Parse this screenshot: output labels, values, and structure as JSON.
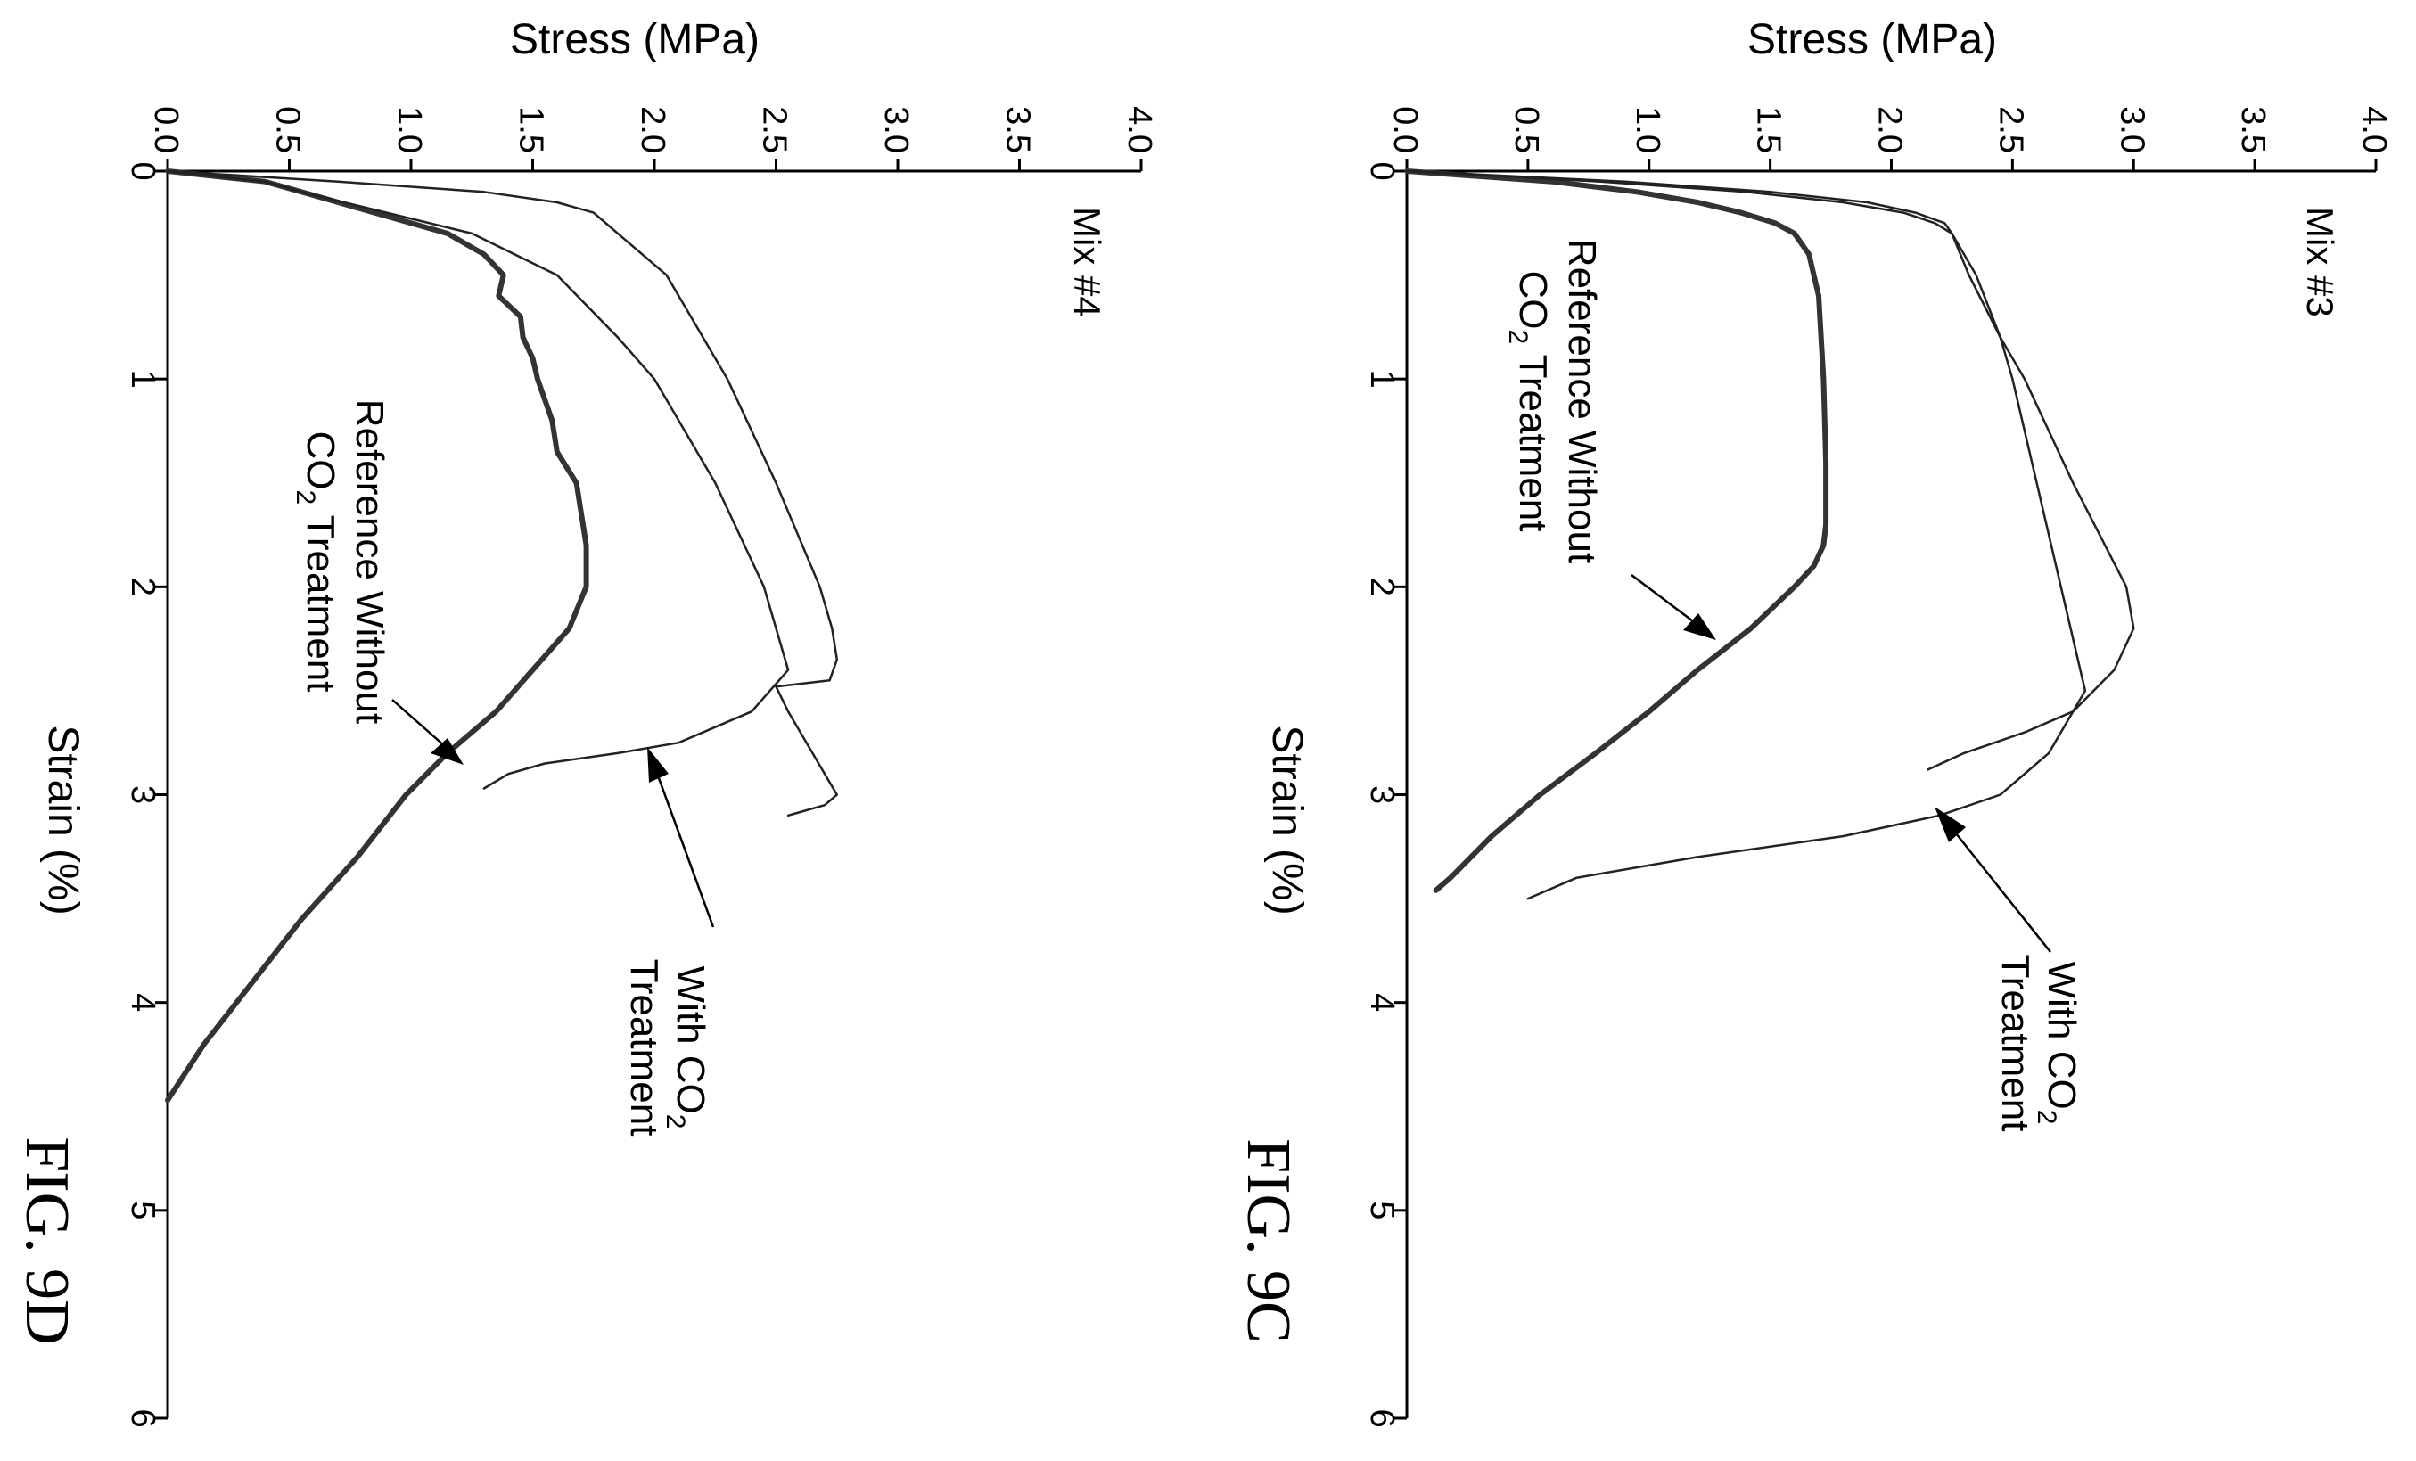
{
  "charts": [
    {
      "chart_data": {
        "type": "line",
        "figure_label": "FIG. 9C",
        "mix_label": "Mix #3",
        "xlabel": "Strain (%)",
        "ylabel": "Stress (MPa)",
        "xlim": [
          0,
          6
        ],
        "ylim": [
          0,
          4.0
        ],
        "xticks": [
          "0",
          "1",
          "2",
          "3",
          "4",
          "5",
          "6"
        ],
        "yticks": [
          "0.0",
          "0.5",
          "1.0",
          "1.5",
          "2.0",
          "2.5",
          "3.0",
          "3.5",
          "4.0"
        ],
        "series": [
          {
            "name": "Reference Without CO2 Treatment",
            "style": "thick",
            "x": [
              0,
              0.05,
              0.1,
              0.15,
              0.2,
              0.25,
              0.3,
              0.4,
              0.6,
              1.0,
              1.4,
              1.7,
              1.8,
              1.9,
              2.0,
              2.2,
              2.4,
              2.6,
              2.8,
              3.0,
              3.2,
              3.4,
              3.46
            ],
            "y": [
              0,
              0.6,
              0.95,
              1.2,
              1.38,
              1.52,
              1.6,
              1.66,
              1.7,
              1.72,
              1.73,
              1.73,
              1.72,
              1.68,
              1.6,
              1.42,
              1.2,
              1.0,
              0.78,
              0.55,
              0.35,
              0.18,
              0.12
            ]
          },
          {
            "name": "With CO2 Treatment",
            "style": "thin",
            "x": [
              0,
              0.05,
              0.1,
              0.15,
              0.2,
              0.25,
              0.3,
              0.5,
              0.8,
              1.0,
              1.5,
              2.0,
              2.2,
              2.4,
              2.6,
              2.7,
              2.8,
              2.88
            ],
            "y": [
              0,
              0.9,
              1.5,
              1.9,
              2.1,
              2.22,
              2.25,
              2.32,
              2.45,
              2.55,
              2.75,
              2.97,
              3.0,
              2.92,
              2.75,
              2.55,
              2.3,
              2.15
            ]
          },
          {
            "name": "With CO2 Treatment",
            "style": "thin",
            "x": [
              0,
              0.05,
              0.1,
              0.15,
              0.2,
              0.25,
              0.3,
              0.4,
              0.5,
              0.8,
              1.0,
              1.5,
              2.0,
              2.5,
              2.8,
              3.0,
              3.1,
              3.2,
              3.3,
              3.4,
              3.5
            ],
            "y": [
              0,
              0.8,
              1.4,
              1.8,
              2.05,
              2.18,
              2.25,
              2.3,
              2.35,
              2.45,
              2.5,
              2.6,
              2.7,
              2.8,
              2.65,
              2.45,
              2.2,
              1.8,
              1.2,
              0.7,
              0.5
            ]
          }
        ],
        "annotations": [
          {
            "lines": [
              "With CO",
              "Treatment"
            ],
            "subscript": "2"
          },
          {
            "lines": [
              "Reference Without",
              "CO",
              "Treatment"
            ],
            "subscript": "2"
          }
        ]
      }
    },
    {
      "chart_data": {
        "type": "line",
        "figure_label": "FIG. 9D",
        "mix_label": "Mix #4",
        "xlabel": "Strain (%)",
        "ylabel": "Stress (MPa)",
        "xlim": [
          0,
          6
        ],
        "ylim": [
          0,
          4.0
        ],
        "xticks": [
          "0",
          "1",
          "2",
          "3",
          "4",
          "5",
          "6"
        ],
        "yticks": [
          "0.0",
          "0.5",
          "1.0",
          "1.5",
          "2.0",
          "2.5",
          "3.0",
          "3.5",
          "4.0"
        ],
        "series": [
          {
            "name": "Reference Without CO2 Treatment",
            "style": "thick",
            "x": [
              0,
              0.05,
              0.1,
              0.2,
              0.3,
              0.4,
              0.5,
              0.6,
              0.7,
              0.8,
              0.9,
              1.0,
              1.2,
              1.35,
              1.5,
              1.8,
              2.0,
              2.2,
              2.4,
              2.6,
              2.8,
              3.0,
              3.3,
              3.6,
              3.9,
              4.2,
              4.47
            ],
            "y": [
              0,
              0.4,
              0.55,
              0.85,
              1.15,
              1.3,
              1.38,
              1.36,
              1.45,
              1.46,
              1.5,
              1.52,
              1.58,
              1.6,
              1.68,
              1.72,
              1.72,
              1.65,
              1.5,
              1.35,
              1.15,
              0.98,
              0.78,
              0.55,
              0.35,
              0.15,
              0
            ]
          },
          {
            "name": "With CO2 Treatment",
            "style": "thin",
            "x": [
              0,
              0.05,
              0.1,
              0.2,
              0.3,
              0.5,
              0.8,
              1.0,
              1.5,
              2.0,
              2.4,
              2.6,
              2.75,
              2.8,
              2.85,
              2.9,
              2.97
            ],
            "y": [
              0,
              0.4,
              0.55,
              0.9,
              1.25,
              1.6,
              1.85,
              2.0,
              2.25,
              2.45,
              2.55,
              2.4,
              2.1,
              1.85,
              1.55,
              1.4,
              1.3
            ]
          },
          {
            "name": "With CO2 Treatment",
            "style": "thin",
            "x": [
              0,
              0.05,
              0.1,
              0.15,
              0.2,
              0.3,
              0.5,
              1.0,
              1.5,
              2.0,
              2.2,
              2.35,
              2.45,
              2.48,
              2.6,
              2.9,
              3.0,
              3.05,
              3.1
            ],
            "y": [
              0,
              0.7,
              1.3,
              1.6,
              1.75,
              1.85,
              2.05,
              2.3,
              2.5,
              2.68,
              2.73,
              2.75,
              2.72,
              2.5,
              2.55,
              2.7,
              2.75,
              2.7,
              2.55
            ]
          }
        ],
        "annotations": [
          {
            "lines": [
              "With CO",
              "Treatment"
            ],
            "subscript": "2"
          },
          {
            "lines": [
              "Reference Without",
              "CO",
              "Treatment"
            ],
            "subscript": "2"
          }
        ]
      }
    }
  ]
}
